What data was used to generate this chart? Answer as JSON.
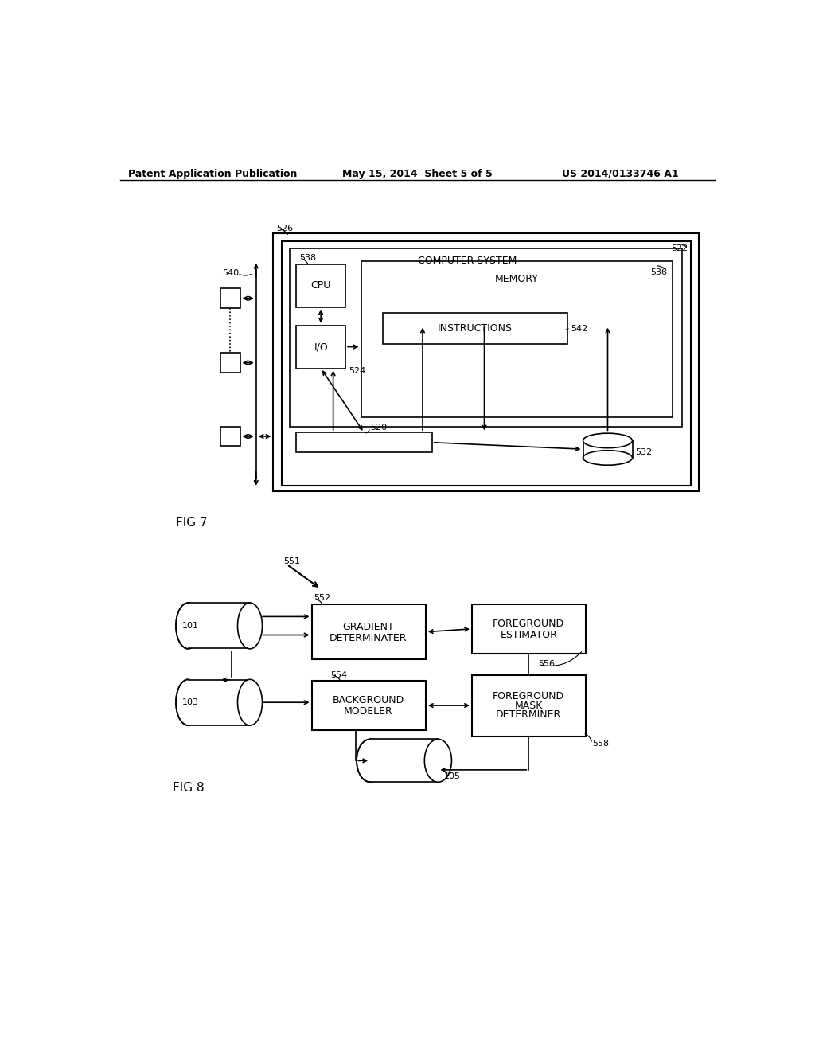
{
  "header_left": "Patent Application Publication",
  "header_mid": "May 15, 2014  Sheet 5 of 5",
  "header_right": "US 2014/0133746 A1",
  "fig7_label": "FIG 7",
  "fig8_label": "FIG 8",
  "background": "#ffffff",
  "line_color": "#000000"
}
